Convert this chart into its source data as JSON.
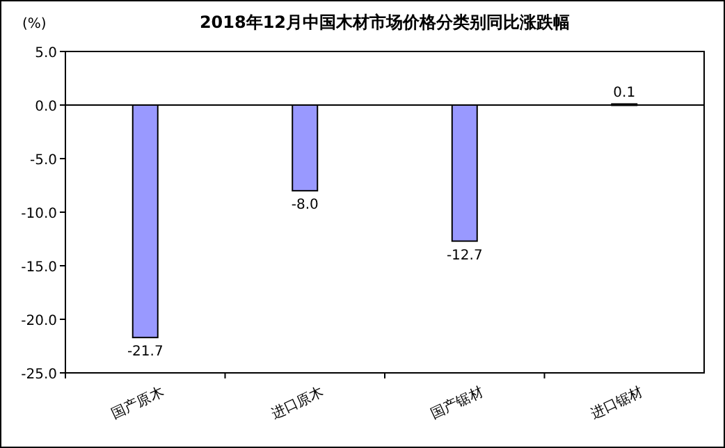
{
  "chart_data": {
    "type": "bar",
    "title": "2018年12月中国木材市场价格分类别同比涨跌幅",
    "ylabel": "(%)",
    "categories": [
      "国产原木",
      "进口原木",
      "国产锯材",
      "进口锯材"
    ],
    "values": [
      -21.7,
      -8.0,
      -12.7,
      0.1
    ],
    "value_labels": [
      "-21.7",
      "-8.0",
      "-12.7",
      "0.1"
    ],
    "color": "#9999ff",
    "ylim": [
      -25,
      5
    ],
    "yticks": [
      {
        "value": 5,
        "label": "5.0"
      },
      {
        "value": 0,
        "label": "0.0"
      },
      {
        "value": -5,
        "label": "-5.0"
      },
      {
        "value": -10,
        "label": "-10.0"
      },
      {
        "value": -15,
        "label": "-15.0"
      },
      {
        "value": -20,
        "label": "-20.0"
      },
      {
        "value": -25,
        "label": "-25.0"
      }
    ],
    "orientation": "vertical"
  }
}
